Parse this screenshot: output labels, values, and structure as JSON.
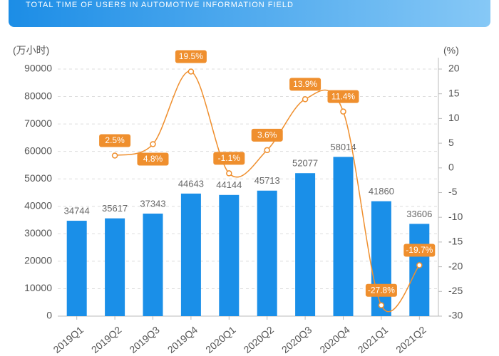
{
  "header": "TOTAL TIME OF USERS IN AUTOMOTIVE INFORMATION FIELD",
  "chart_data": {
    "type": "bar",
    "y_unit": "(万小时)",
    "y2_unit": "(%)",
    "categories": [
      "2019Q1",
      "2019Q2",
      "2019Q3",
      "2019Q4",
      "2020Q1",
      "2020Q2",
      "2020Q3",
      "2020Q4",
      "2021Q1",
      "2021Q2"
    ],
    "series": [
      {
        "color": "#1a8fe8",
        "values": [
          34744,
          35617,
          37343,
          44643,
          44144,
          45713,
          52077,
          58014,
          41860,
          33606
        ]
      },
      {
        "type": "line",
        "axis": "y2",
        "color": "#ef8f2e",
        "values": [
          null,
          2.5,
          4.8,
          19.5,
          -1.1,
          3.6,
          13.9,
          11.4,
          -27.8,
          -19.7
        ],
        "value_labels": [
          null,
          "2.5%",
          "4.8%",
          "19.5%",
          "-1.1%",
          "3.6%",
          "13.9%",
          "11.4%",
          "-27.8%",
          "-19.7%"
        ]
      }
    ],
    "ylim": [
      0,
      90000
    ],
    "yticks": [
      0,
      10000,
      20000,
      30000,
      40000,
      50000,
      60000,
      70000,
      80000,
      90000
    ],
    "y2lim": [
      -30,
      20
    ],
    "y2ticks": [
      -30,
      -25,
      -20,
      -15,
      -10,
      -5,
      0,
      5,
      10,
      15,
      20
    ],
    "grid": true
  }
}
